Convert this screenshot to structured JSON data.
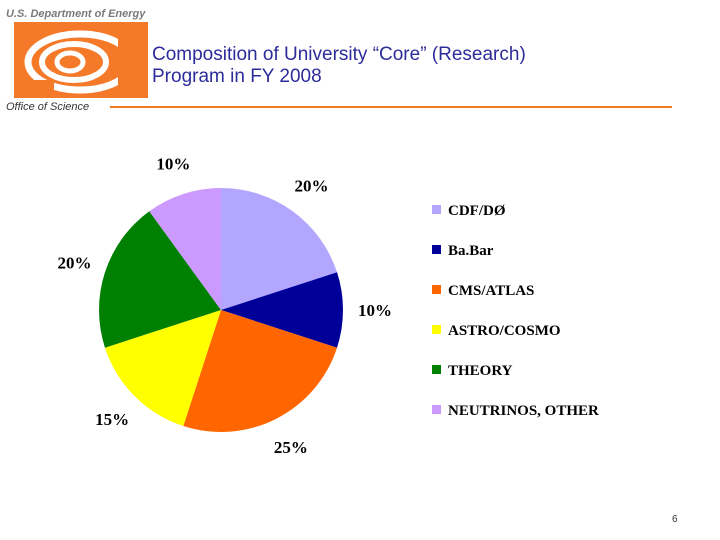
{
  "header": {
    "agency": "U.S. Department of Energy",
    "title_line1": "Composition of University “Core” (Research)",
    "title_line2": "Program in FY 2008",
    "office": "Office of Science",
    "logo_icon": "doe-office-of-science-logo-icon",
    "accent_color": "#f07d1e"
  },
  "chart_data": {
    "type": "pie",
    "title": "",
    "categories": [
      "CDF/DØ",
      "Ba.Bar",
      "CMS/ATLAS",
      "ASTRO/COSMO",
      "THEORY",
      "NEUTRINOS, OTHER"
    ],
    "values": [
      20,
      10,
      25,
      15,
      20,
      10
    ],
    "value_labels": [
      "20%",
      "10%",
      "25%",
      "15%",
      "20%",
      "10%"
    ],
    "colors": [
      "#b3a6ff",
      "#000099",
      "#ff6600",
      "#ffff00",
      "#008000",
      "#cc99ff"
    ],
    "legend_position": "right"
  },
  "footer": {
    "page_number": "6"
  }
}
